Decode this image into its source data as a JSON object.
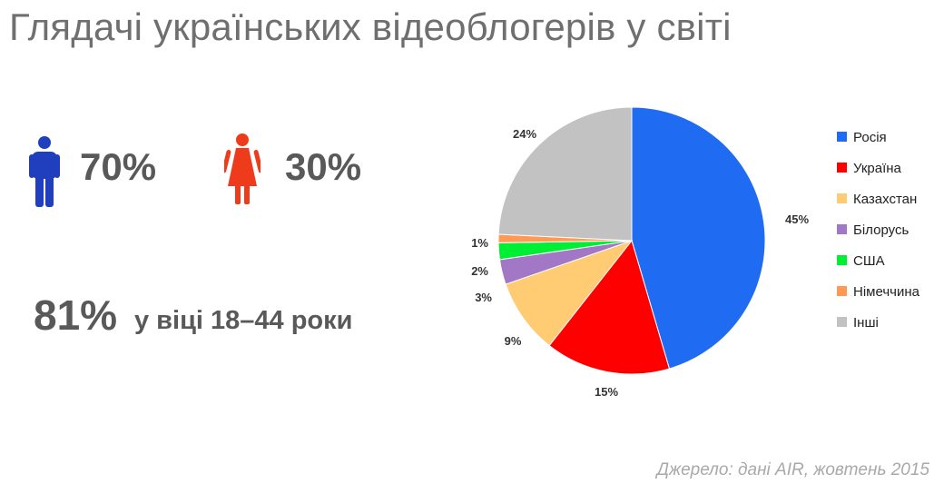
{
  "page": {
    "title": "Глядачі українських відеоблогерів у світі",
    "male": {
      "icon": "man-icon",
      "color": "#1f3fbf",
      "value": "70%"
    },
    "female": {
      "icon": "woman-icon",
      "color": "#ee3b1b",
      "value": "30%"
    },
    "age": {
      "value": "81%",
      "label": "у віці 18–44 роки"
    },
    "source": "Джерело: дані AIR, жовтень 2015"
  },
  "chart_data": {
    "type": "pie",
    "start_angle_deg": 0,
    "direction": "clockwise",
    "legend_position": "right",
    "series": [
      {
        "name": "Росія",
        "value": 45,
        "label": "45%",
        "color": "#1f6cf2"
      },
      {
        "name": "Україна",
        "value": 15,
        "label": "15%",
        "color": "#ff0000"
      },
      {
        "name": "Казахстан",
        "value": 9,
        "label": "9%",
        "color": "#ffcc73"
      },
      {
        "name": "Білорусь",
        "value": 3,
        "label": "3%",
        "color": "#a177c6"
      },
      {
        "name": "США",
        "value": 2,
        "label": "2%",
        "color": "#00ee33"
      },
      {
        "name": "Німеччина",
        "value": 1,
        "label": "1%",
        "color": "#ff9955"
      },
      {
        "name": "Інші",
        "value": 24,
        "label": "24%",
        "color": "#c2c2c2"
      }
    ]
  }
}
